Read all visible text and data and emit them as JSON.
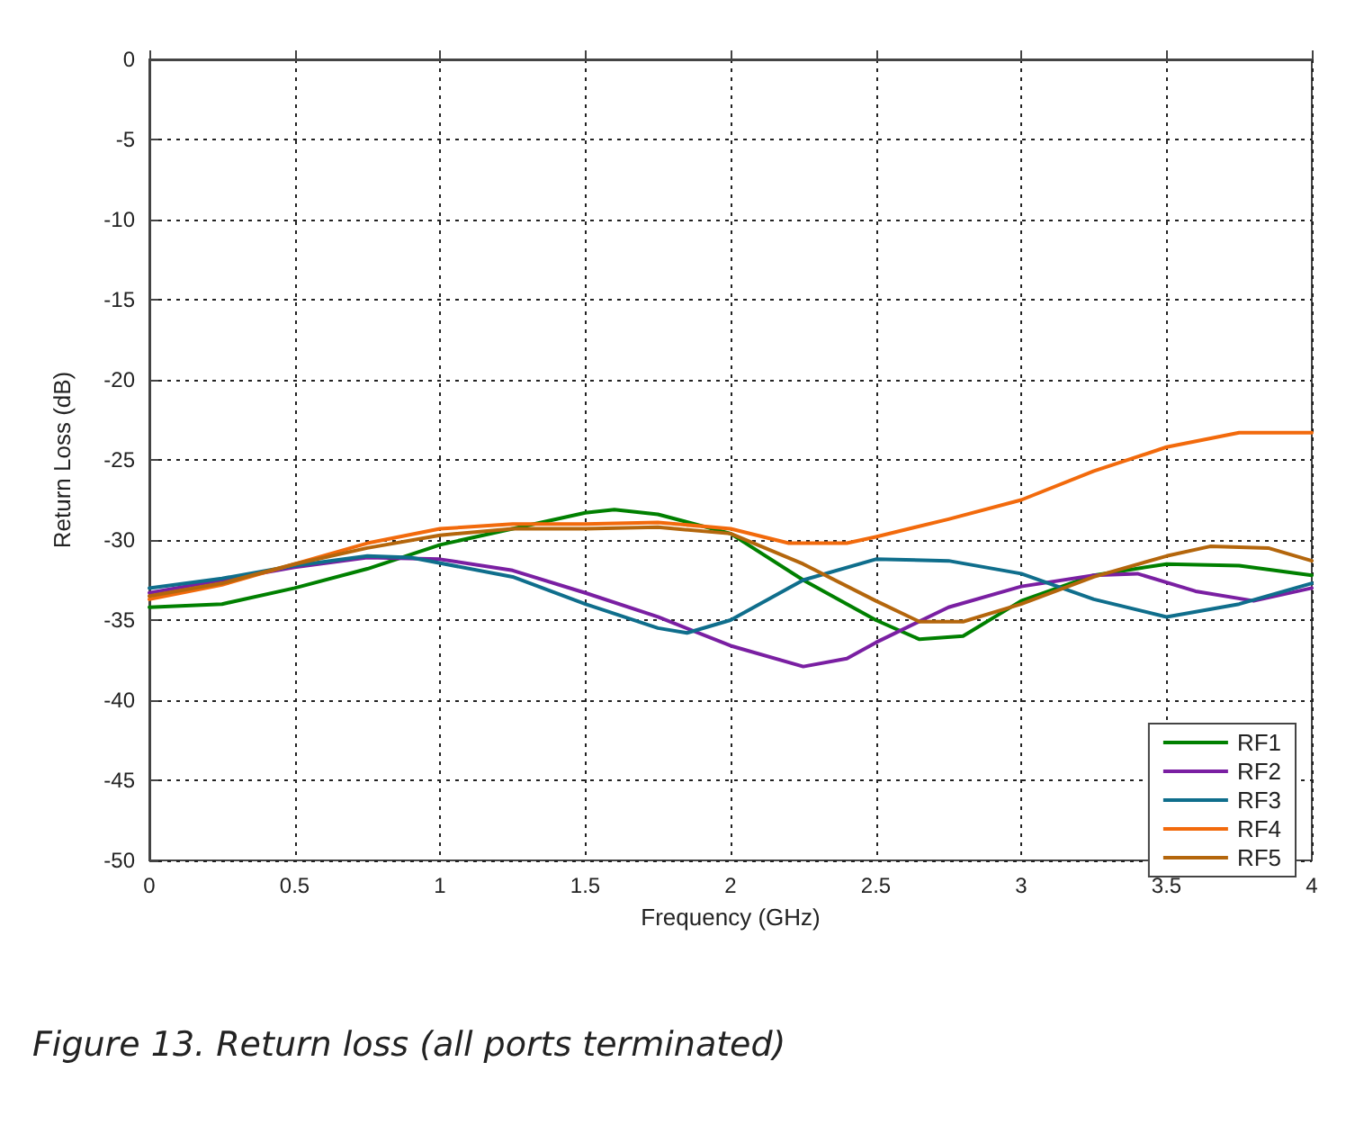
{
  "chart_data": {
    "type": "line",
    "xlabel": "Frequency (GHz)",
    "ylabel": "Return Loss (dB)",
    "xlim": [
      0,
      4
    ],
    "ylim": [
      -50,
      0
    ],
    "xticks": [
      0,
      0.5,
      1,
      1.5,
      2,
      2.5,
      3,
      3.5,
      4
    ],
    "yticks": [
      -50,
      -45,
      -40,
      -35,
      -30,
      -25,
      -20,
      -15,
      -10,
      -5,
      0
    ],
    "grid": true,
    "legend": "bottom right",
    "marker": "none",
    "line_style": "solid",
    "annotations": [
      "Figure 13. Return loss (all ports terminated)"
    ],
    "series": [
      {
        "name": "RF1",
        "color": "#008000",
        "x": [
          0,
          0.25,
          0.5,
          0.75,
          1,
          1.25,
          1.5,
          1.6,
          1.75,
          2,
          2.25,
          2.5,
          2.65,
          2.8,
          3,
          3.25,
          3.5,
          3.75,
          4
        ],
        "values": [
          -34.2,
          -34,
          -33,
          -31.8,
          -30.3,
          -29.3,
          -28.3,
          -28.1,
          -28.4,
          -29.6,
          -32.5,
          -35,
          -36.2,
          -36,
          -33.8,
          -32.2,
          -31.5,
          -31.6,
          -32.2
        ]
      },
      {
        "name": "RF2",
        "color": "#7a1fa2",
        "x": [
          0,
          0.25,
          0.5,
          0.75,
          1,
          1.25,
          1.5,
          1.75,
          2,
          2.25,
          2.4,
          2.5,
          2.75,
          3,
          3.25,
          3.4,
          3.6,
          3.8,
          4
        ],
        "values": [
          -33.3,
          -32.5,
          -31.7,
          -31.1,
          -31.2,
          -31.9,
          -33.3,
          -34.8,
          -36.6,
          -37.9,
          -37.4,
          -36.4,
          -34.2,
          -32.9,
          -32.2,
          -32.1,
          -33.2,
          -33.8,
          -33
        ]
      },
      {
        "name": "RF3",
        "color": "#0f6e8c",
        "x": [
          0,
          0.25,
          0.5,
          0.75,
          0.9,
          1.25,
          1.5,
          1.75,
          1.85,
          2,
          2.25,
          2.5,
          2.75,
          3,
          3.25,
          3.5,
          3.75,
          4
        ],
        "values": [
          -33,
          -32.4,
          -31.6,
          -31,
          -31.1,
          -32.3,
          -34,
          -35.5,
          -35.8,
          -35,
          -32.5,
          -31.2,
          -31.3,
          -32.1,
          -33.7,
          -34.8,
          -34,
          -32.7
        ]
      },
      {
        "name": "RF4",
        "color": "#f26a0c",
        "x": [
          0,
          0.25,
          0.5,
          0.75,
          1,
          1.25,
          1.5,
          1.75,
          2,
          2.2,
          2.4,
          2.5,
          2.75,
          3,
          3.25,
          3.5,
          3.75,
          4
        ],
        "values": [
          -33.7,
          -32.8,
          -31.5,
          -30.2,
          -29.3,
          -29,
          -29,
          -28.9,
          -29.3,
          -30.2,
          -30.2,
          -29.8,
          -28.7,
          -27.5,
          -25.7,
          -24.2,
          -23.3,
          -23.3
        ]
      },
      {
        "name": "RF5",
        "color": "#b4660c",
        "x": [
          0,
          0.25,
          0.5,
          0.75,
          1,
          1.25,
          1.5,
          1.75,
          2,
          2.25,
          2.5,
          2.65,
          2.8,
          3,
          3.25,
          3.5,
          3.65,
          3.85,
          4
        ],
        "values": [
          -33.5,
          -32.7,
          -31.5,
          -30.5,
          -29.7,
          -29.3,
          -29.3,
          -29.2,
          -29.6,
          -31.5,
          -33.8,
          -35.1,
          -35.1,
          -34,
          -32.3,
          -31,
          -30.4,
          -30.5,
          -31.3
        ]
      }
    ]
  }
}
